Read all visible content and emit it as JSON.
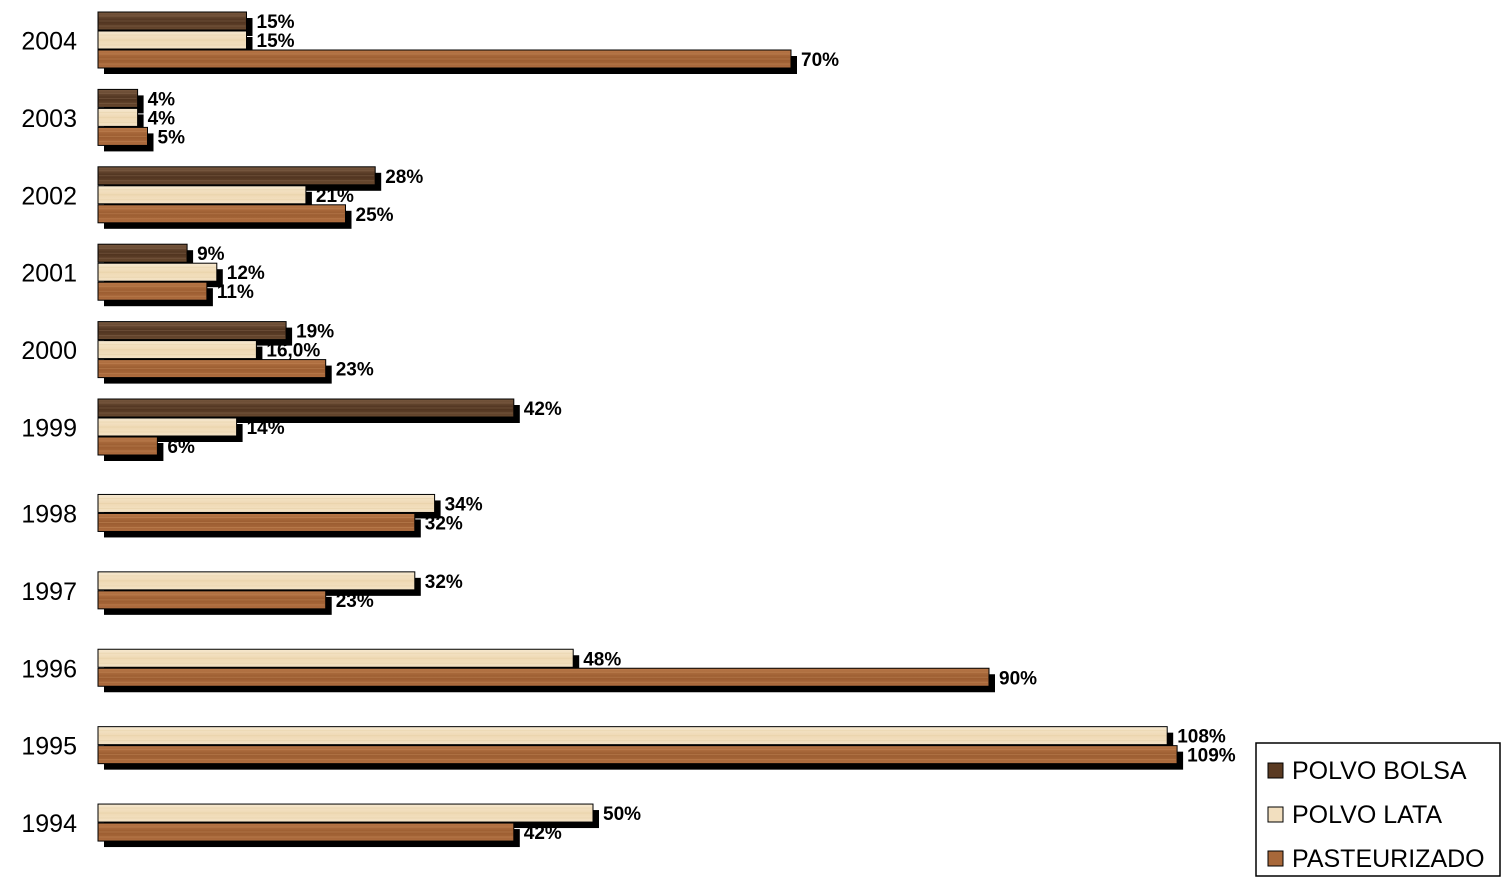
{
  "chart_data": {
    "type": "bar",
    "orientation": "horizontal",
    "categories": [
      "2004",
      "2003",
      "2002",
      "2001",
      "2000",
      "1999",
      "1998",
      "1997",
      "1996",
      "1995",
      "1994"
    ],
    "series": [
      {
        "name": "POLVO BOLSA",
        "color": "#5a3a22",
        "values": [
          15,
          4,
          28,
          9,
          19,
          42,
          null,
          null,
          null,
          null,
          null
        ],
        "labels": [
          "15%",
          "4%",
          "28%",
          "9%",
          "19%",
          "42%",
          "",
          "",
          "",
          "",
          ""
        ]
      },
      {
        "name": "POLVO LATA",
        "color": "#f2dfbf",
        "values": [
          15,
          4,
          21,
          12,
          16.0,
          14,
          34,
          32,
          48,
          108,
          50
        ],
        "labels": [
          "15%",
          "4%",
          "21%",
          "12%",
          "16,0%",
          "14%",
          "34%",
          "32%",
          "48%",
          "108%",
          "50%"
        ]
      },
      {
        "name": "PASTEURIZADO",
        "color": "#a8683a",
        "values": [
          70,
          5,
          25,
          11,
          23,
          6,
          32,
          23,
          90,
          109,
          42
        ],
        "labels": [
          "70%",
          "5%",
          "25%",
          "11%",
          "23%",
          "6%",
          "32%",
          "23%",
          "90%",
          "109%",
          "42%"
        ]
      }
    ],
    "xlim": [
      0,
      110
    ],
    "grid": false,
    "legend_position": "bottom-right"
  }
}
